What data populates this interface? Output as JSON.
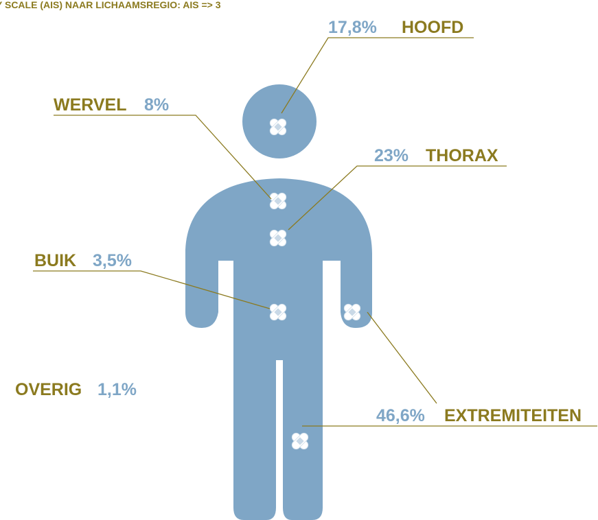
{
  "title": "Y SCALE (AIS) NAAR LICHAAMSREGIO: AIS => 3",
  "regions": [
    {
      "name": "HOOFD",
      "value": "17,8%"
    },
    {
      "name": "WERVEL",
      "value": "8%"
    },
    {
      "name": "THORAX",
      "value": "23%"
    },
    {
      "name": "BUIK",
      "value": "3,5%"
    },
    {
      "name": "OVERIG",
      "value": "1,1%"
    },
    {
      "name": "EXTREMITEITEN",
      "value": "46,6%"
    }
  ]
}
